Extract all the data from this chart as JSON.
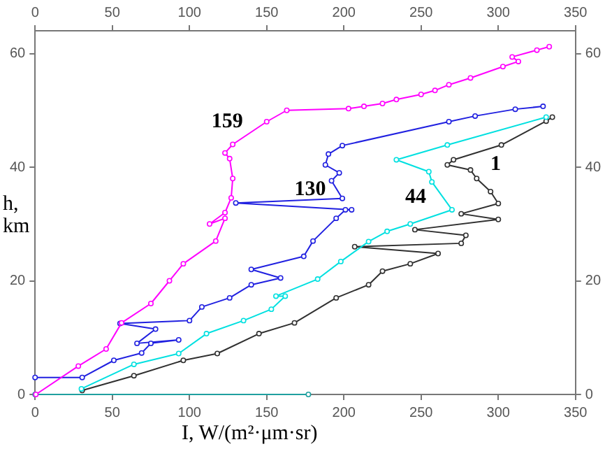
{
  "chart_data": {
    "type": "line",
    "xlabel": "I, W/(m²·μm·sr)",
    "ylabel": "h, km",
    "xlim": [
      0,
      350
    ],
    "xticks": [
      0,
      50,
      100,
      150,
      200,
      250,
      300,
      350
    ],
    "x2lim": [
      0,
      350
    ],
    "x2ticks": [
      0,
      50,
      100,
      150,
      200,
      250,
      300,
      350
    ],
    "ylim": [
      0,
      64
    ],
    "yticks": [
      0,
      20,
      40,
      60
    ],
    "y2lim": [
      0,
      64
    ],
    "y2ticks": [
      0,
      20,
      40,
      60
    ],
    "grid": false,
    "legend": false,
    "marker": "circle",
    "line_style": "solid",
    "series": [
      {
        "name": "159",
        "color": "#ff00ff",
        "x": [
          0.5,
          28,
          46,
          56,
          75,
          87,
          96,
          117,
          123,
          113,
          123,
          127,
          128,
          126,
          123,
          128,
          150,
          163,
          203,
          213,
          225,
          234,
          250,
          259,
          268,
          282,
          303,
          313,
          309,
          325,
          333
        ],
        "values": [
          0,
          5,
          8,
          12.6,
          16,
          20,
          23,
          27,
          31,
          30,
          32,
          34.6,
          38,
          41.5,
          42.5,
          44,
          48,
          50,
          50.3,
          50.7,
          51.2,
          51.9,
          52.8,
          53.5,
          54.5,
          55.7,
          57.7,
          58.6,
          59.4,
          60.6,
          61.2
        ]
      },
      {
        "name": "130",
        "color": "#2020e0",
        "x": [
          0,
          30.5,
          51,
          69,
          75,
          93,
          66,
          78,
          55,
          100,
          108,
          126,
          140,
          159,
          140,
          174,
          180,
          195,
          201,
          205,
          130,
          199,
          192,
          197,
          188,
          190,
          199,
          268,
          285,
          311,
          329
        ],
        "values": [
          3,
          3,
          6,
          7.3,
          9,
          9.6,
          9,
          11.5,
          12.5,
          13,
          15.4,
          17,
          19.3,
          20.5,
          22,
          24.3,
          27,
          31,
          32.5,
          32.5,
          33.7,
          34.5,
          37.6,
          39,
          40.4,
          42.3,
          43.8,
          48,
          49,
          50.2,
          50.7
        ]
      },
      {
        "name": "44",
        "color": "#00e0e0",
        "x": [
          30,
          64,
          93,
          111,
          135,
          153,
          162,
          156,
          183,
          198,
          216,
          228,
          243,
          270,
          257,
          255,
          234,
          267,
          331
        ],
        "values": [
          1,
          5.3,
          7.2,
          10.7,
          13,
          15,
          17.3,
          17.3,
          20.3,
          23.4,
          26.9,
          28.7,
          30,
          32.5,
          37.4,
          39.2,
          41.3,
          43.9,
          48.8
        ]
      },
      {
        "name": "1",
        "color": "#303030",
        "x": [
          30.5,
          64,
          96,
          118,
          145,
          168,
          195,
          216,
          225,
          243,
          261,
          207,
          276,
          279,
          246,
          300,
          276,
          300,
          295,
          286,
          282,
          267,
          271,
          302,
          331,
          335
        ],
        "values": [
          0.7,
          3.3,
          6,
          7.2,
          10.7,
          12.6,
          17,
          19.3,
          21.7,
          23,
          24.8,
          26,
          26.6,
          28,
          29,
          30.8,
          31.8,
          33.6,
          35.7,
          38,
          39.5,
          40.4,
          41.3,
          43.9,
          48.1,
          48.8
        ]
      },
      {
        "color": "#20a0a0",
        "x": [
          0,
          177
        ],
        "values": [
          0,
          0
        ]
      }
    ]
  }
}
